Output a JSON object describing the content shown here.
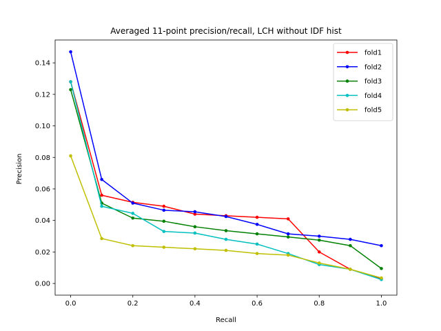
{
  "chart_data": {
    "type": "line",
    "title": "Averaged 11-point precision/recall, LCH without IDF hist",
    "xlabel": "Recall",
    "ylabel": "Precision",
    "xlim": [
      -0.05,
      1.05
    ],
    "ylim": [
      -0.0074,
      0.1545
    ],
    "grid": false,
    "legend_position": "top-right",
    "x": [
      0.0,
      0.1,
      0.2,
      0.3,
      0.4,
      0.5,
      0.6,
      0.7,
      0.8,
      0.9,
      1.0
    ],
    "x_ticks": [
      "0.0",
      "0.2",
      "0.4",
      "0.6",
      "0.8",
      "1.0"
    ],
    "y_ticks": [
      "0.00",
      "0.02",
      "0.04",
      "0.06",
      "0.08",
      "0.10",
      "0.12",
      "0.14"
    ],
    "series": [
      {
        "name": "fold1",
        "color": "#ff0000",
        "values": [
          0.128,
          0.056,
          0.0515,
          0.049,
          0.044,
          0.043,
          0.042,
          0.041,
          0.02,
          0.009,
          0.003
        ]
      },
      {
        "name": "fold2",
        "color": "#0000ff",
        "values": [
          0.147,
          0.066,
          0.051,
          0.0465,
          0.0455,
          0.0425,
          0.0375,
          0.0315,
          0.03,
          0.028,
          0.024
        ]
      },
      {
        "name": "fold3",
        "color": "#008000",
        "values": [
          0.123,
          0.051,
          0.0415,
          0.0395,
          0.036,
          0.0335,
          0.0315,
          0.0295,
          0.0275,
          0.024,
          0.0095
        ]
      },
      {
        "name": "fold4",
        "color": "#00bfbf",
        "values": [
          0.128,
          0.049,
          0.0445,
          0.033,
          0.032,
          0.028,
          0.025,
          0.019,
          0.012,
          0.009,
          0.0025
        ]
      },
      {
        "name": "fold5",
        "color": "#bfbf00",
        "values": [
          0.081,
          0.0285,
          0.024,
          0.023,
          0.022,
          0.021,
          0.019,
          0.018,
          0.013,
          0.009,
          0.0035
        ]
      }
    ]
  }
}
